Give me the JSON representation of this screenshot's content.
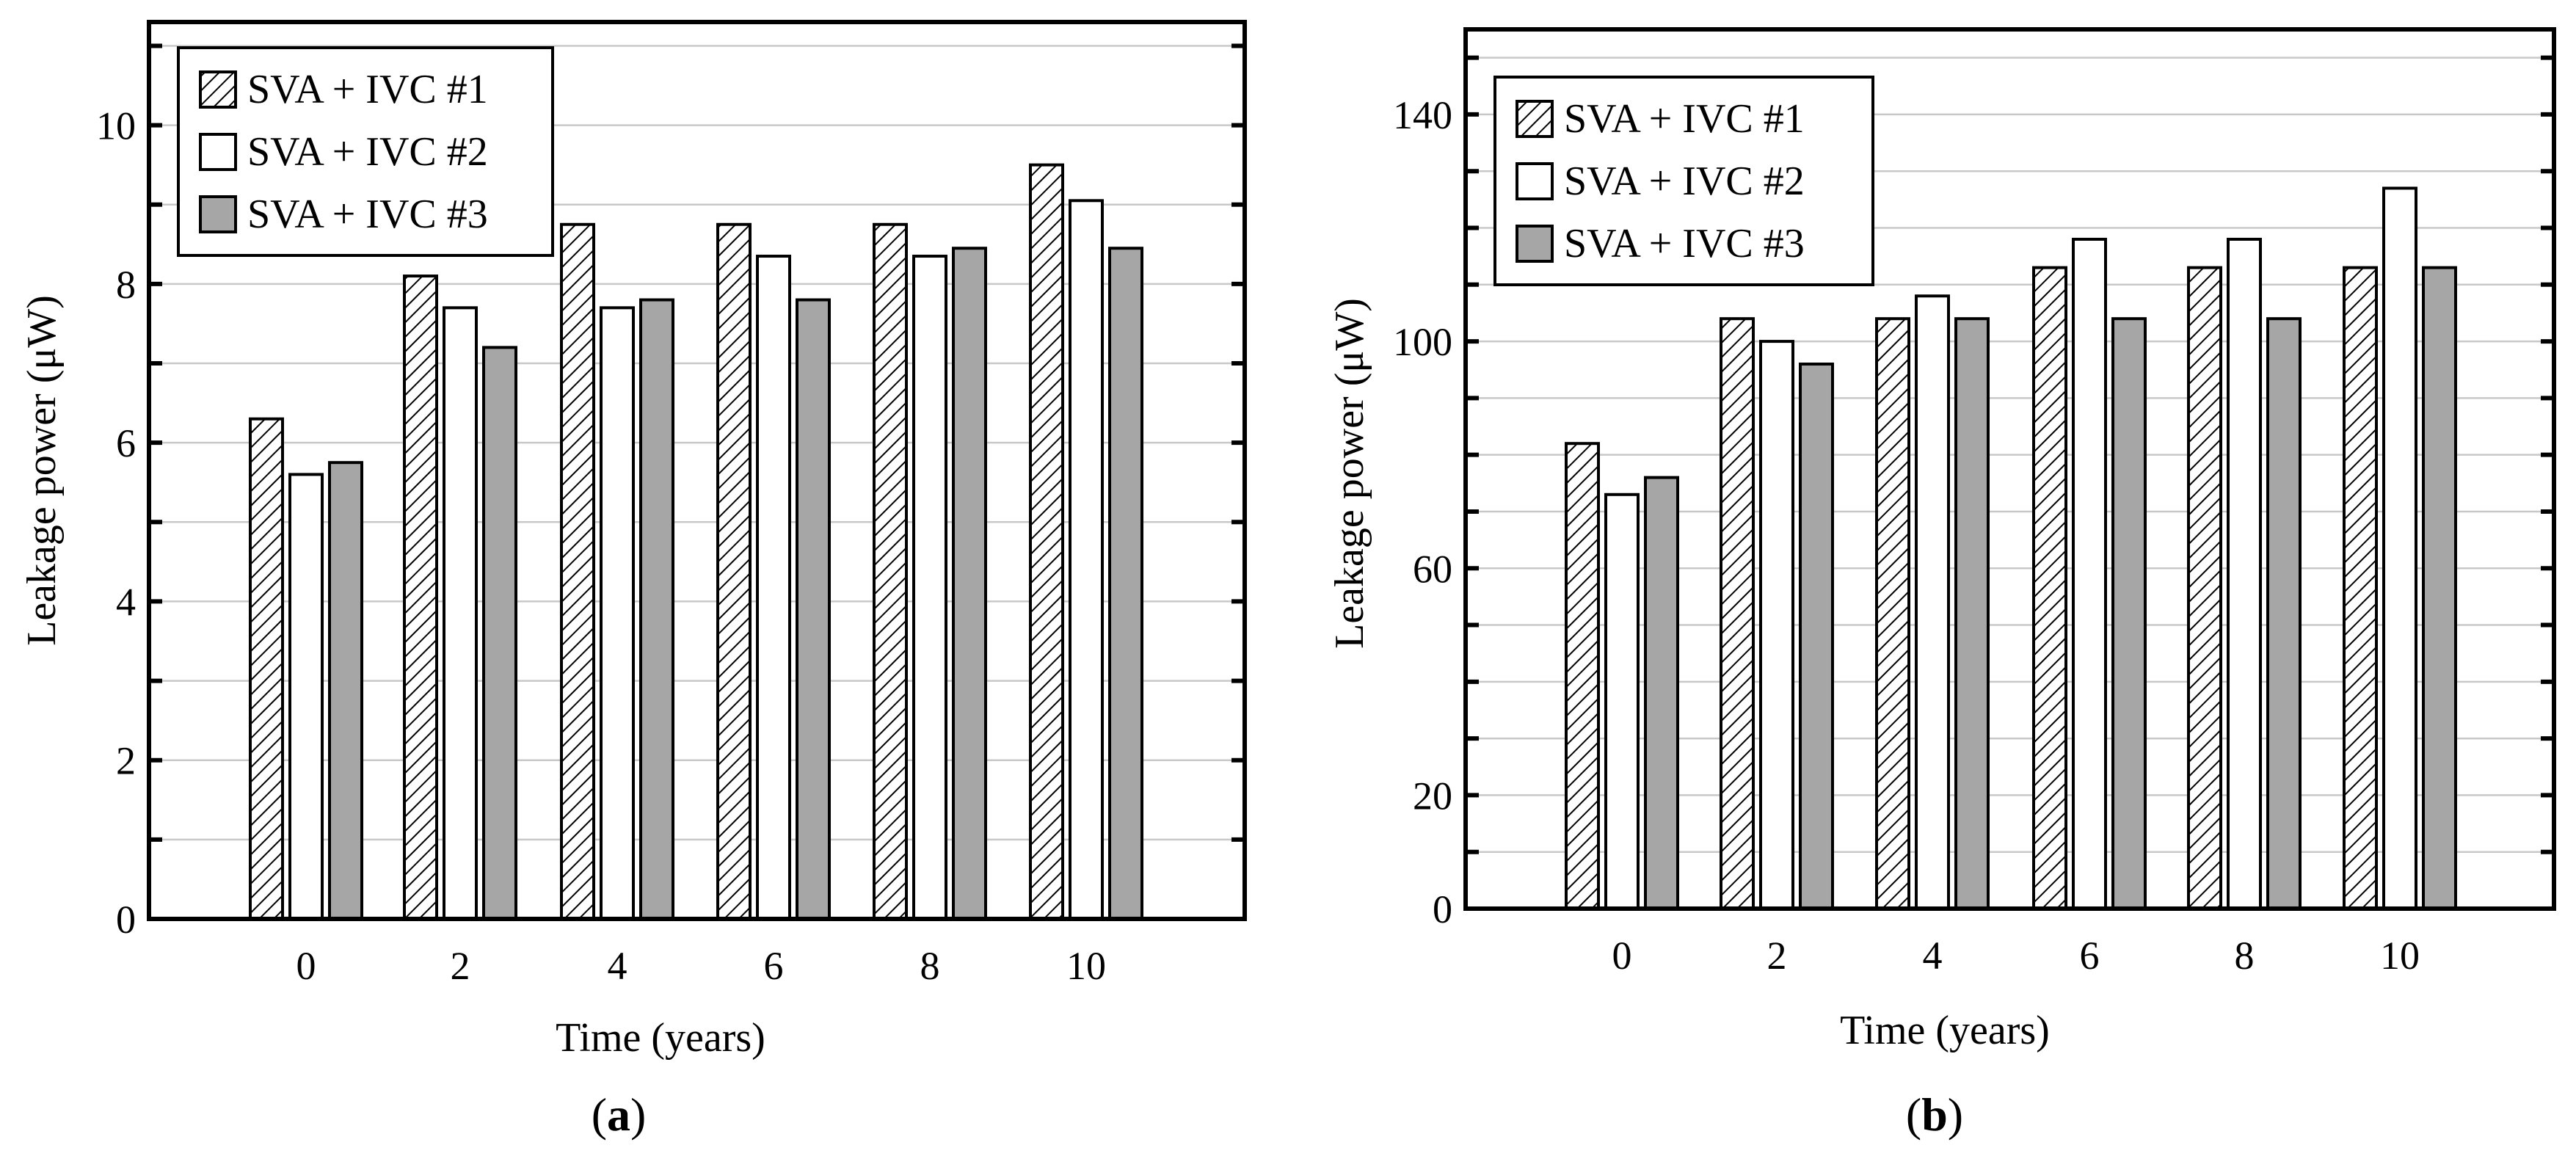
{
  "charts": [
    {
      "panel_label": "a",
      "chart_data": {
        "type": "bar",
        "title": "",
        "xlabel": "Time (years)",
        "ylabel": "Leakage power (μW)",
        "categories": [
          "0",
          "2",
          "4",
          "6",
          "8",
          "10"
        ],
        "ylim": [
          0,
          11.3
        ],
        "yticks": [
          "0",
          "2",
          "4",
          "6",
          "8",
          "10"
        ],
        "grid": true,
        "legend_position": "top-left",
        "series": [
          {
            "name": "SVA + IVC #1",
            "values": [
              6.3,
              8.1,
              8.75,
              8.75,
              8.75,
              9.5
            ]
          },
          {
            "name": "SVA + IVC #2",
            "values": [
              5.6,
              7.7,
              7.7,
              8.35,
              8.35,
              9.05
            ]
          },
          {
            "name": "SVA + IVC #3",
            "values": [
              5.75,
              7.2,
              7.8,
              7.8,
              8.45,
              8.45
            ]
          }
        ]
      }
    },
    {
      "panel_label": "b",
      "chart_data": {
        "type": "bar",
        "title": "",
        "xlabel": "Time (years)",
        "ylabel": "Leakage power (μW)",
        "categories": [
          "0",
          "2",
          "4",
          "6",
          "8",
          "10"
        ],
        "ylim": [
          0,
          155
        ],
        "yticks": [
          "0",
          "20",
          "60",
          "100",
          "140"
        ],
        "grid": true,
        "legend_position": "top-left",
        "series": [
          {
            "name": "SVA + IVC #1",
            "values": [
              82,
              104,
              104,
              113,
              113,
              113
            ]
          },
          {
            "name": "SVA + IVC #2",
            "values": [
              73,
              100,
              108,
              118,
              118,
              127
            ]
          },
          {
            "name": "SVA + IVC #3",
            "values": [
              76,
              96,
              104,
              104,
              104,
              113
            ]
          }
        ]
      }
    }
  ],
  "colors": {
    "axis": "#000000",
    "grid": "#c8c8c8",
    "series1_fill": "#ffffff",
    "series1_hatch": "#000000",
    "series2_fill": "#ffffff",
    "series3_fill": "#a6a6a6"
  }
}
